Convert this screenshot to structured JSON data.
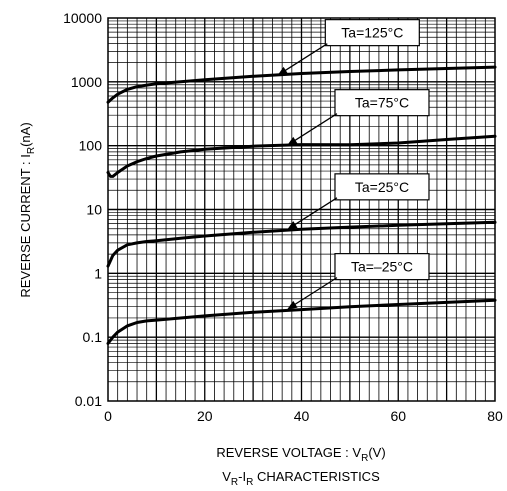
{
  "chart_data": {
    "type": "line",
    "title": "",
    "caption": {
      "main": "V",
      "sub1": "R",
      "mid": "-I",
      "sub2": "R",
      "rest": " CHARACTERISTICS"
    },
    "xlabel": {
      "main": "REVERSE VOLTAGE : V",
      "sub": "R",
      "suffix": "(V)"
    },
    "ylabel": {
      "main": "REVERSE CURRENT : I",
      "sub": "R",
      "suffix": "(nA)"
    },
    "xlim": [
      0,
      80
    ],
    "ylim": [
      0.01,
      10000
    ],
    "yscale": "log",
    "grid": true,
    "x_ticks": [
      {
        "value": 0,
        "label": "0"
      },
      {
        "value": 20,
        "label": "20"
      },
      {
        "value": 40,
        "label": "40"
      },
      {
        "value": 60,
        "label": "60"
      },
      {
        "value": 80,
        "label": "80"
      }
    ],
    "y_ticks": [
      {
        "value": 0.01,
        "label": "0.01"
      },
      {
        "value": 0.1,
        "label": "0.1"
      },
      {
        "value": 1,
        "label": "1"
      },
      {
        "value": 10,
        "label": "10"
      },
      {
        "value": 100,
        "label": "100"
      },
      {
        "value": 1000,
        "label": "1000"
      },
      {
        "value": 10000,
        "label": "10000"
      }
    ],
    "series": [
      {
        "name": "Ta=125°C",
        "x": [
          0,
          1,
          2,
          4,
          6,
          8,
          10,
          15,
          20,
          30,
          40,
          50,
          60,
          70,
          80
        ],
        "y": [
          480,
          560,
          640,
          760,
          840,
          890,
          930,
          1000,
          1080,
          1220,
          1350,
          1450,
          1540,
          1620,
          1700
        ],
        "label_anchor": {
          "x": 35,
          "y": 1250
        }
      },
      {
        "name": "Ta=75°C",
        "x": [
          0,
          0.5,
          1,
          2,
          4,
          6,
          8,
          10,
          15,
          20,
          30,
          40,
          50,
          60,
          70,
          80
        ],
        "y": [
          38,
          33,
          33,
          38,
          48,
          56,
          63,
          69,
          80,
          88,
          98,
          104,
          103,
          110,
          125,
          140
        ],
        "label_anchor": {
          "x": 37,
          "y": 100
        }
      },
      {
        "name": "Ta=25°C",
        "x": [
          0,
          1,
          2,
          4,
          6,
          8,
          10,
          15,
          20,
          30,
          40,
          50,
          60,
          70,
          80
        ],
        "y": [
          1.3,
          1.9,
          2.3,
          2.8,
          3.0,
          3.15,
          3.25,
          3.55,
          3.85,
          4.4,
          4.9,
          5.3,
          5.65,
          6.0,
          6.3
        ],
        "label_anchor": {
          "x": 37,
          "y": 4.8
        }
      },
      {
        "name": "Ta=–25°C",
        "x": [
          0,
          1,
          2,
          4,
          6,
          8,
          10,
          15,
          20,
          30,
          40,
          50,
          60,
          70,
          80
        ],
        "y": [
          0.08,
          0.1,
          0.12,
          0.15,
          0.17,
          0.18,
          0.185,
          0.2,
          0.215,
          0.245,
          0.27,
          0.3,
          0.325,
          0.35,
          0.38
        ],
        "label_anchor": {
          "x": 37,
          "y": 0.27
        }
      }
    ]
  }
}
